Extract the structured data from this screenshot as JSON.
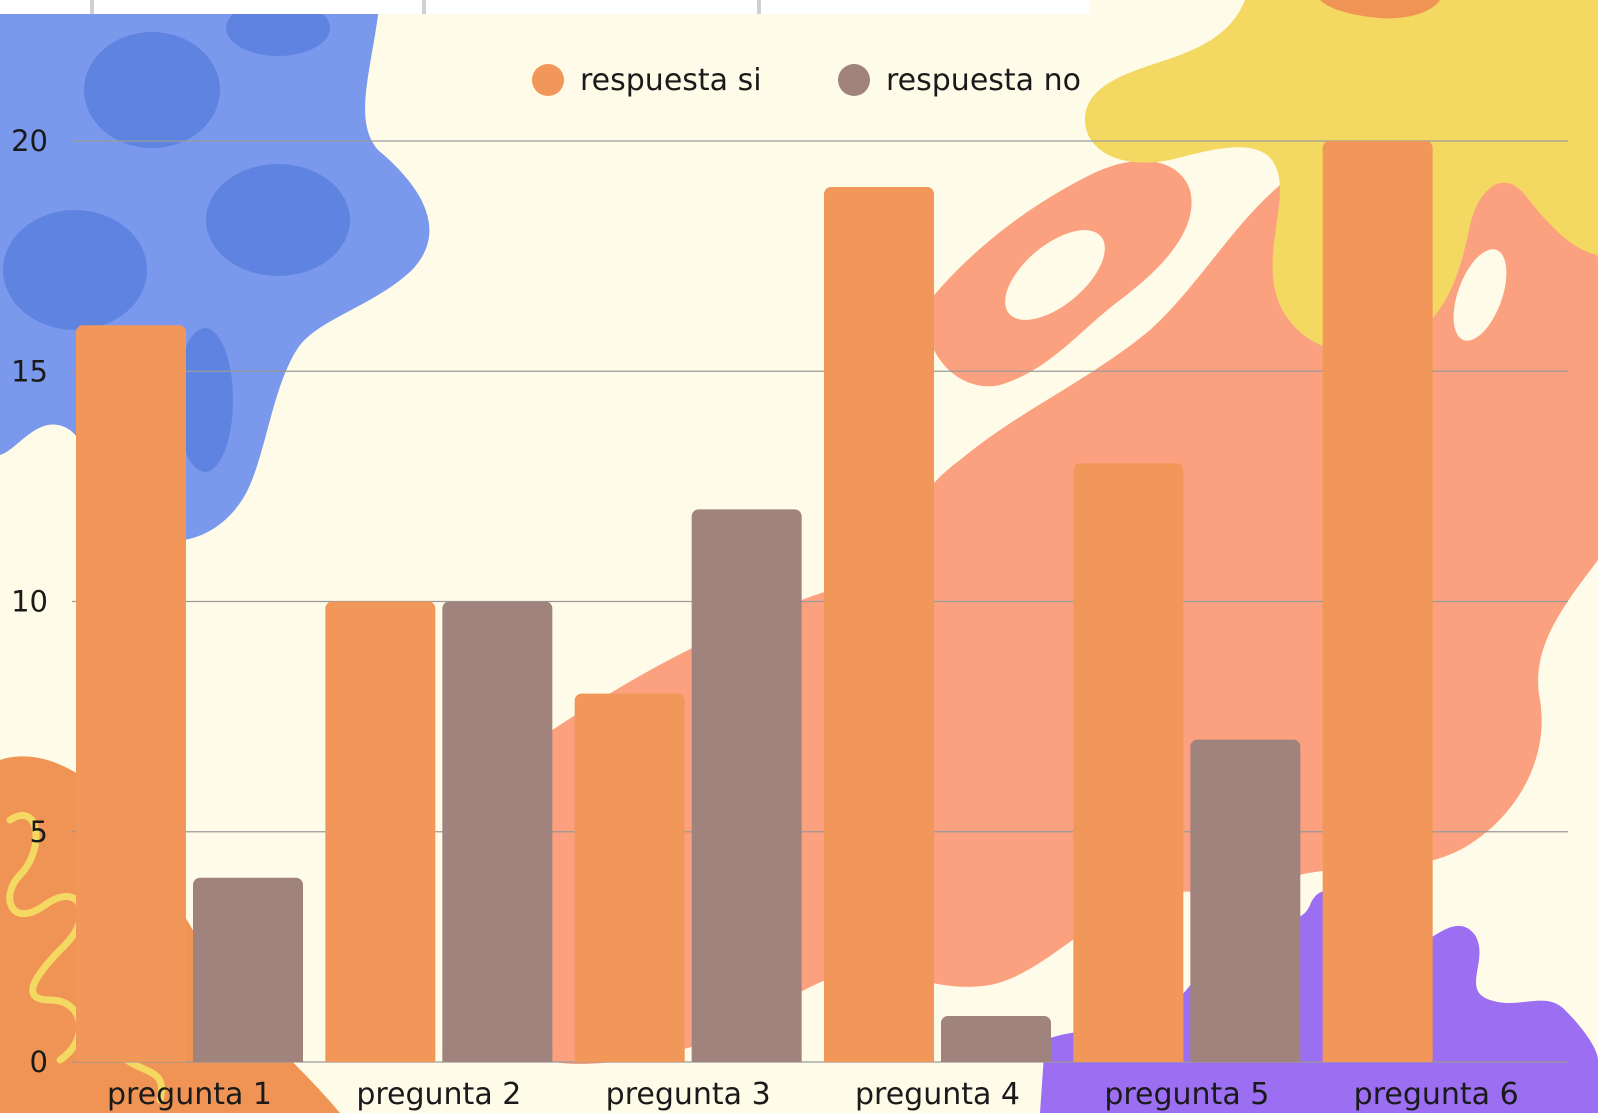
{
  "colors": {
    "background": "#fffbe9",
    "series_si": "#f2975a",
    "series_no": "#a0837d",
    "gridline": "#9a9a9a",
    "blob_blue": "#7b99ec",
    "blob_blue_dark": "#5f83e0",
    "blob_yellow": "#f3d862",
    "blob_coral": "#fba17f",
    "blob_orange": "#f09455",
    "blob_purple": "#9b6ef2"
  },
  "chart_data": {
    "type": "bar",
    "categories": [
      "pregunta 1",
      "pregunta 2",
      "pregunta 3",
      "pregunta 4",
      "pregunta 5",
      "pregunta 6"
    ],
    "series": [
      {
        "name": "respuesta si",
        "values": [
          16,
          10,
          8,
          19,
          13,
          20
        ]
      },
      {
        "name": "respuesta no",
        "values": [
          4,
          10,
          12,
          1,
          7,
          0
        ]
      }
    ],
    "title": "",
    "xlabel": "",
    "ylabel": "",
    "ylim": [
      0,
      20
    ],
    "yticks": [
      "0",
      "5",
      "10",
      "15",
      "20"
    ],
    "grid": true,
    "legend_position": "top-center"
  }
}
